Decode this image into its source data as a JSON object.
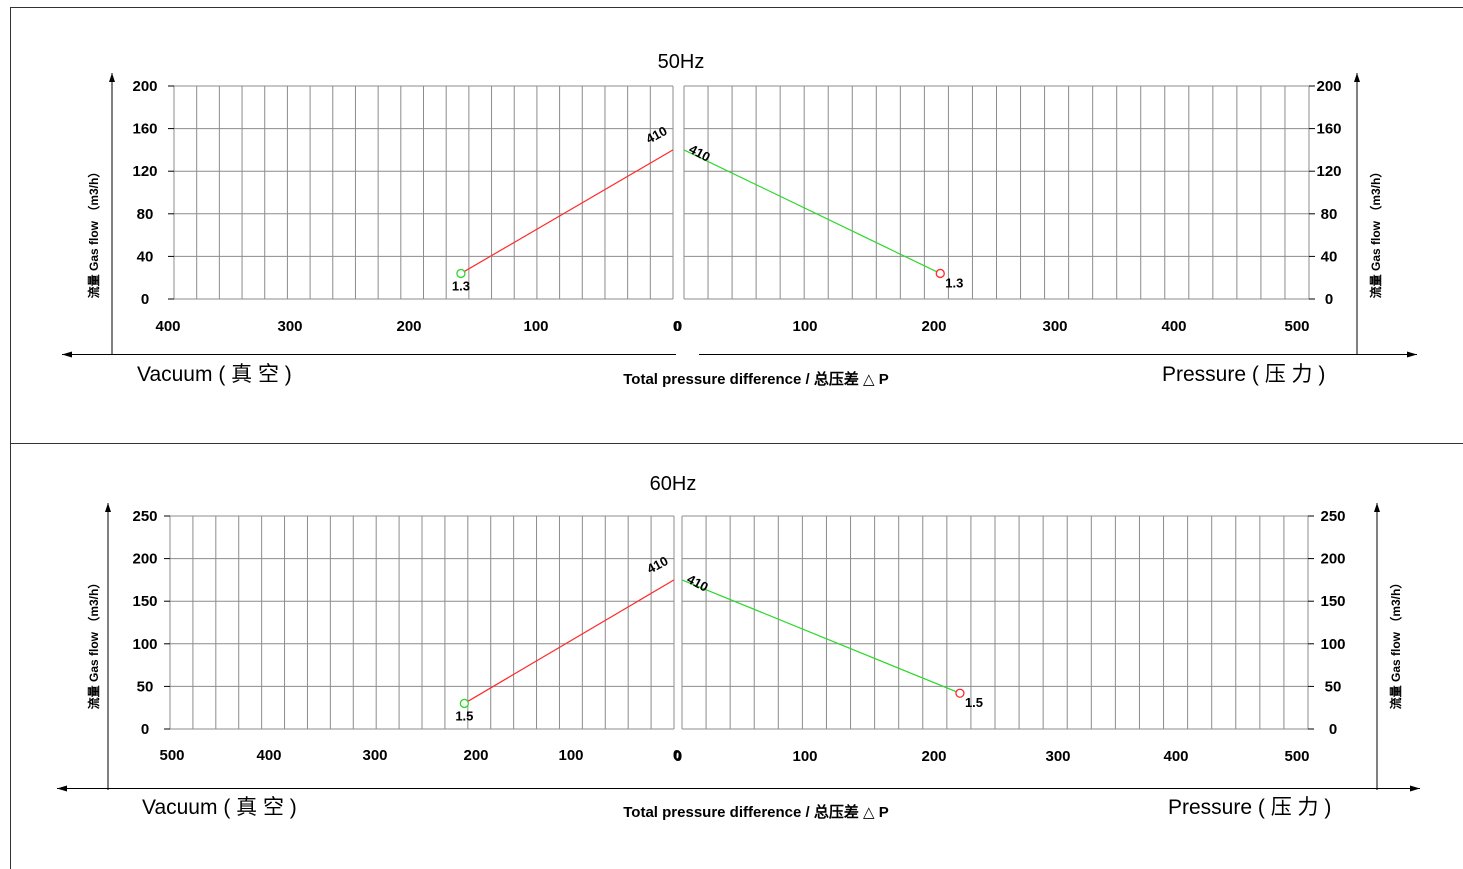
{
  "chart_data": [
    {
      "type": "line",
      "title": "50Hz",
      "ylabel": "流量 Gas flow （m3/h）",
      "xlabel": "Total pressure difference / 总压差 △ P",
      "left_label": "Vacuum ( 真 空 )",
      "right_label": "Pressure ( 压 力 )",
      "left_panel": {
        "xlim": [
          400,
          0
        ],
        "ylim": [
          0,
          200
        ],
        "xticks": [
          "400",
          "300",
          "200",
          "100",
          "0"
        ],
        "yticks": [
          "200",
          "160",
          "120",
          "80",
          "40",
          "0"
        ],
        "series": [
          {
            "points": [
              [
                170,
                24
              ],
              [
                0,
                140
              ]
            ],
            "color": "#ff2a2a",
            "marker": "#2bd82b",
            "start_label": "1.3",
            "end_label": "410"
          }
        ]
      },
      "right_panel": {
        "xlim": [
          0,
          500
        ],
        "ylim": [
          0,
          200
        ],
        "xticks": [
          "0",
          "100",
          "200",
          "300",
          "400",
          "500"
        ],
        "yticks": [
          "200",
          "160",
          "120",
          "80",
          "40",
          "0"
        ],
        "series": [
          {
            "points": [
              [
                0,
                140
              ],
              [
                205,
                24
              ]
            ],
            "color": "#2bd82b",
            "marker": "#ff2a2a",
            "start_label": "410",
            "end_label": "1.3"
          }
        ]
      }
    },
    {
      "type": "line",
      "title": "60Hz",
      "ylabel": "流量 Gas flow （m3/h）",
      "xlabel": "Total pressure difference / 总压差 △ P",
      "left_label": "Vacuum ( 真 空 )",
      "right_label": "Pressure ( 压 力 )",
      "left_panel": {
        "xlim": [
          500,
          0
        ],
        "ylim": [
          0,
          250
        ],
        "xticks": [
          "500",
          "400",
          "300",
          "200",
          "100",
          "0"
        ],
        "yticks": [
          "250",
          "200",
          "150",
          "100",
          "50",
          "0"
        ],
        "series": [
          {
            "points": [
              [
                208,
                30
              ],
              [
                0,
                175
              ]
            ],
            "color": "#ff2a2a",
            "marker": "#2bd82b",
            "start_label": "1.5",
            "end_label": "410"
          }
        ]
      },
      "right_panel": {
        "xlim": [
          0,
          500
        ],
        "ylim": [
          0,
          250
        ],
        "xticks": [
          "0",
          "100",
          "200",
          "300",
          "400",
          "500"
        ],
        "yticks": [
          "250",
          "200",
          "150",
          "100",
          "50",
          "0"
        ],
        "series": [
          {
            "points": [
              [
                0,
                175
              ],
              [
                222,
                42
              ]
            ],
            "color": "#2bd82b",
            "marker": "#ff2a2a",
            "start_label": "410",
            "end_label": "1.5"
          }
        ]
      }
    }
  ]
}
